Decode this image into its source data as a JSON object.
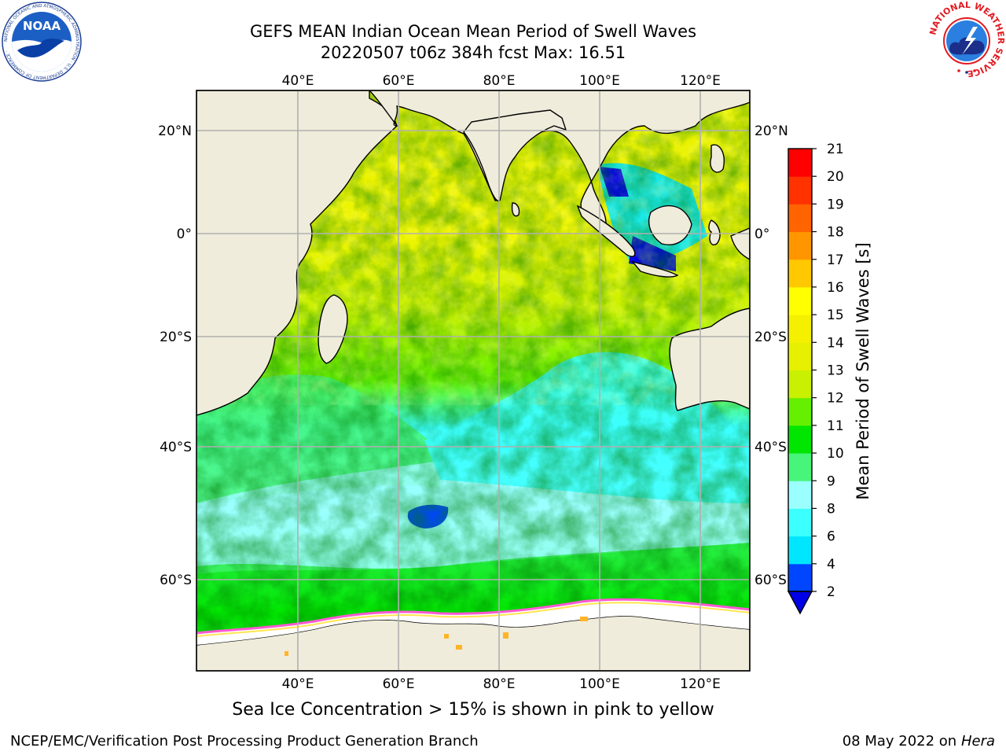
{
  "title_line1": "GEFS MEAN Indian Ocean Mean Period of Swell Waves",
  "title_line2": "20220507 t06z 384h fcst   Max: 16.51",
  "caption": "Sea Ice Concentration > 15% is shown in pink to yellow",
  "footer_left": "NCEP/EMC/Verification Post Processing Product Generation Branch",
  "footer_date": "08 May 2022 on",
  "footer_machine": "Hera",
  "logos": {
    "noaa": {
      "text": "NOAA",
      "ring_text": "NATIONAL OCEANIC AND ATMOSPHERIC ADMINISTRATION · U.S. DEPARTMENT OF COMMERCE ·"
    },
    "nws": {
      "ring_text": "NATIONAL WEATHER SERVICE"
    }
  },
  "map": {
    "lon_ticks": [
      "40°E",
      "60°E",
      "80°E",
      "100°E",
      "120°E"
    ],
    "lat_ticks": [
      "20°N",
      "0°",
      "20°S",
      "40°S",
      "60°S"
    ],
    "land_color": "#efecdb",
    "grid_color": "#b0b0b0"
  },
  "colorbar": {
    "label": "Mean Period of Swell Waves [s]",
    "ticks": [
      "2",
      "4",
      "6",
      "8",
      "9",
      "10",
      "11",
      "12",
      "13",
      "14",
      "15",
      "16",
      "17",
      "18",
      "19",
      "20",
      "21"
    ],
    "colors": [
      "#0046ff",
      "#00e6ff",
      "#3cffff",
      "#9bffff",
      "#46f57a",
      "#00e600",
      "#64f000",
      "#c8f000",
      "#e6f000",
      "#f5f000",
      "#ffff00",
      "#ffc800",
      "#ff9600",
      "#ff6400",
      "#ff3200",
      "#ff0000"
    ],
    "under_color": "#0000e6"
  },
  "legend_colors": {
    "ice_pink": "#ff5ad2",
    "ice_yellow": "#ffe650",
    "ice_orange": "#ffb428"
  }
}
